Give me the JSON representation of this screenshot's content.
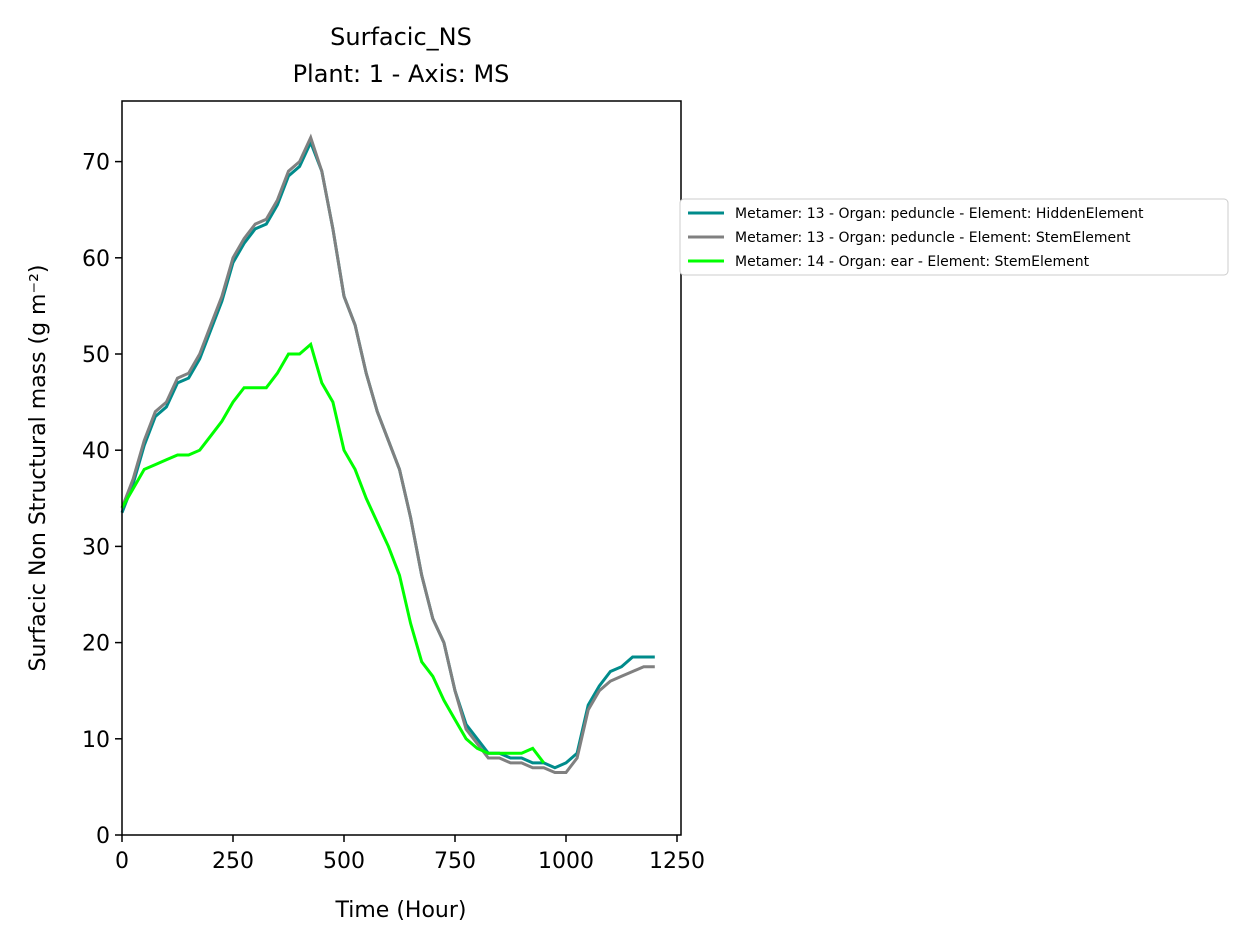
{
  "chart_data": {
    "type": "line",
    "title": "Surfacic_NS",
    "subtitle": "Plant: 1 - Axis: MS",
    "x_label": "Time (Hour)",
    "y_label": "Surfacic Non Structural mass (g m⁻²)",
    "x": [
      0,
      25,
      50,
      75,
      100,
      125,
      150,
      175,
      200,
      225,
      250,
      275,
      300,
      325,
      350,
      375,
      400,
      425,
      450,
      475,
      500,
      525,
      550,
      575,
      600,
      625,
      650,
      675,
      700,
      725,
      750,
      775,
      800,
      825,
      850,
      875,
      900,
      925,
      950,
      975,
      1000,
      1025,
      1050,
      1075,
      1100,
      1125,
      1150,
      1175,
      1200
    ],
    "series": [
      {
        "name": "Metamer: 13 - Organ: peduncle - Element: HiddenElement",
        "color": "#008b8b",
        "values": [
          33.5,
          36.5,
          40.5,
          43.5,
          44.5,
          47,
          47.5,
          49.5,
          52.5,
          55.5,
          59.5,
          61.5,
          63,
          63.5,
          65.5,
          68.5,
          69.5,
          72,
          69,
          63,
          56,
          53,
          48,
          44,
          41,
          38,
          33,
          27,
          22.5,
          20,
          15,
          11.5,
          10,
          8.5,
          8.5,
          8,
          8,
          7.5,
          7.5,
          7,
          7.5,
          8.5,
          13.5,
          15.5,
          17,
          17.5,
          18.5,
          18.5,
          18.5
        ]
      },
      {
        "name": "Metamer: 13 - Organ: peduncle - Element: StemElement",
        "color": "#808080",
        "values": [
          34,
          37,
          41,
          44,
          45,
          47.5,
          48,
          50,
          53,
          56,
          60,
          62,
          63.5,
          64,
          66,
          69,
          70,
          72.5,
          69,
          63,
          56,
          53,
          48,
          44,
          41,
          38,
          33,
          27,
          22.5,
          20,
          15,
          11,
          9.5,
          8,
          8,
          7.5,
          7.5,
          7,
          7,
          6.5,
          6.5,
          8,
          13,
          15,
          16,
          16.5,
          17,
          17.5,
          17.5
        ]
      },
      {
        "name": "Metamer: 14 - Organ: ear - Element: StemElement",
        "color": "#00ff00",
        "values": [
          34,
          36,
          38,
          38.5,
          39,
          39.5,
          39.5,
          40,
          41.5,
          43,
          45,
          46.5,
          46.5,
          46.5,
          48,
          50,
          50,
          51,
          47,
          45,
          40,
          38,
          35,
          32.5,
          30,
          27,
          22,
          18,
          16.5,
          14,
          12,
          10,
          9,
          8.5,
          8.5,
          8.5,
          8.5,
          9,
          7.5,
          null,
          null,
          null,
          null,
          null,
          null,
          null,
          null,
          null,
          null
        ]
      }
    ],
    "xlim": [
      0,
      1259
    ],
    "ylim": [
      0,
      76.3
    ],
    "xticks": [
      0,
      250,
      500,
      750,
      1000,
      1250
    ],
    "yticks": [
      0,
      10,
      20,
      30,
      40,
      50,
      60,
      70
    ],
    "grid": false,
    "legend": "outside right"
  }
}
